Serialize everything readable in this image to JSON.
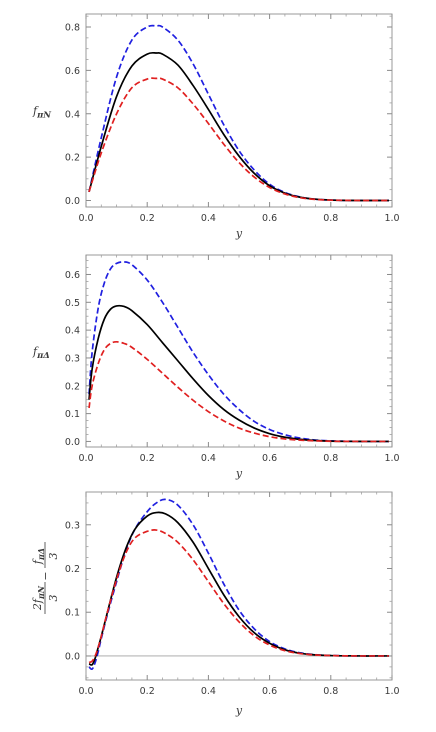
{
  "chart_data": [
    {
      "type": "line",
      "title": "",
      "xlabel": "y",
      "ylabel": "f_{πN}",
      "xlim": [
        0,
        1
      ],
      "ylim": [
        -0.03,
        0.86
      ],
      "xticks": [
        "0.0",
        "0.2",
        "0.4",
        "0.6",
        "0.8",
        "1.0"
      ],
      "yticks": [
        "0.0",
        "0.2",
        "0.4",
        "0.6",
        "0.8"
      ],
      "grid": false,
      "legend": "none",
      "x": [
        0.01,
        0.05,
        0.1,
        0.15,
        0.2,
        0.23,
        0.25,
        0.3,
        0.35,
        0.4,
        0.45,
        0.5,
        0.55,
        0.6,
        0.65,
        0.7,
        0.75,
        0.8,
        0.85,
        0.9,
        0.95,
        0.99
      ],
      "series": [
        {
          "color": "#2020e0",
          "dash": "dashed",
          "values": [
            0.04,
            0.29,
            0.57,
            0.74,
            0.8,
            0.805,
            0.8,
            0.74,
            0.63,
            0.49,
            0.35,
            0.23,
            0.14,
            0.075,
            0.037,
            0.016,
            0.006,
            0.002,
            0.0006,
            0.0001,
            0.0,
            0.0
          ]
        },
        {
          "color": "#000000",
          "dash": "solid",
          "values": [
            0.04,
            0.25,
            0.48,
            0.62,
            0.675,
            0.68,
            0.675,
            0.625,
            0.53,
            0.42,
            0.305,
            0.205,
            0.125,
            0.068,
            0.034,
            0.015,
            0.006,
            0.002,
            0.0006,
            0.0001,
            0.0,
            0.0
          ]
        },
        {
          "color": "#e02020",
          "dash": "dashed",
          "values": [
            0.04,
            0.22,
            0.4,
            0.52,
            0.56,
            0.563,
            0.56,
            0.52,
            0.445,
            0.355,
            0.26,
            0.175,
            0.108,
            0.06,
            0.03,
            0.013,
            0.005,
            0.0018,
            0.0005,
            0.0001,
            0.0,
            0.0
          ]
        }
      ]
    },
    {
      "type": "line",
      "title": "",
      "xlabel": "y",
      "ylabel": "f_{πΔ}",
      "xlim": [
        0,
        1
      ],
      "ylim": [
        -0.02,
        0.67
      ],
      "xticks": [
        "0.0",
        "0.2",
        "0.4",
        "0.6",
        "0.8",
        "1.0"
      ],
      "yticks": [
        "0.0",
        "0.1",
        "0.2",
        "0.3",
        "0.4",
        "0.5",
        "0.6"
      ],
      "grid": false,
      "legend": "none",
      "x": [
        0.01,
        0.02,
        0.04,
        0.06,
        0.08,
        0.1,
        0.125,
        0.15,
        0.2,
        0.25,
        0.3,
        0.35,
        0.4,
        0.45,
        0.5,
        0.55,
        0.6,
        0.65,
        0.7,
        0.75,
        0.8,
        0.85,
        0.9,
        0.95,
        0.99
      ],
      "series": [
        {
          "color": "#2020e0",
          "dash": "dashed",
          "values": [
            0.17,
            0.32,
            0.48,
            0.57,
            0.62,
            0.64,
            0.645,
            0.635,
            0.58,
            0.5,
            0.41,
            0.32,
            0.24,
            0.17,
            0.115,
            0.072,
            0.043,
            0.024,
            0.012,
            0.005,
            0.002,
            0.0007,
            0.0002,
            0.0,
            0.0
          ]
        },
        {
          "color": "#000000",
          "dash": "solid",
          "values": [
            0.15,
            0.26,
            0.37,
            0.44,
            0.475,
            0.487,
            0.485,
            0.47,
            0.42,
            0.355,
            0.29,
            0.225,
            0.165,
            0.115,
            0.077,
            0.048,
            0.028,
            0.015,
            0.0075,
            0.0033,
            0.0012,
            0.0004,
            0.0001,
            0.0,
            0.0
          ]
        },
        {
          "color": "#e02020",
          "dash": "dashed",
          "values": [
            0.12,
            0.2,
            0.28,
            0.33,
            0.352,
            0.358,
            0.352,
            0.338,
            0.295,
            0.245,
            0.195,
            0.148,
            0.107,
            0.074,
            0.048,
            0.03,
            0.017,
            0.009,
            0.0045,
            0.002,
            0.0007,
            0.0002,
            0.0,
            0.0,
            0.0
          ]
        }
      ]
    },
    {
      "type": "line",
      "title": "",
      "xlabel": "y",
      "ylabel": "2f_{πN}/3 − f_{πΔ}/3",
      "ylabel_parts": {
        "n1": "2f",
        "n1_sub": "πN",
        "d1": "3",
        "minus": "−",
        "n2": "f",
        "n2_sub": "πΔ",
        "d2": "3"
      },
      "xlim": [
        0,
        1
      ],
      "ylim": [
        -0.055,
        0.375
      ],
      "xticks": [
        "0.0",
        "0.2",
        "0.4",
        "0.6",
        "0.8",
        "1.0"
      ],
      "yticks": [
        "0.0",
        "0.1",
        "0.2",
        "0.3"
      ],
      "zero_line": true,
      "grid": false,
      "legend": "none",
      "x": [
        0.01,
        0.02,
        0.03,
        0.04,
        0.05,
        0.07,
        0.1,
        0.13,
        0.16,
        0.2,
        0.23,
        0.26,
        0.3,
        0.35,
        0.4,
        0.45,
        0.5,
        0.55,
        0.6,
        0.65,
        0.7,
        0.75,
        0.8,
        0.85,
        0.9,
        0.95,
        0.99
      ],
      "series": [
        {
          "color": "#2020e0",
          "dash": "dashed",
          "values": [
            -0.025,
            -0.03,
            -0.015,
            0.01,
            0.04,
            0.095,
            0.17,
            0.24,
            0.29,
            0.33,
            0.35,
            0.358,
            0.345,
            0.3,
            0.235,
            0.165,
            0.105,
            0.062,
            0.033,
            0.016,
            0.007,
            0.0028,
            0.001,
            0.0003,
            0.0,
            0.0,
            0.0
          ]
        },
        {
          "color": "#000000",
          "dash": "solid",
          "values": [
            -0.018,
            -0.02,
            -0.005,
            0.02,
            0.045,
            0.1,
            0.18,
            0.245,
            0.29,
            0.32,
            0.328,
            0.325,
            0.305,
            0.26,
            0.2,
            0.14,
            0.09,
            0.053,
            0.029,
            0.014,
            0.006,
            0.0024,
            0.0009,
            0.0003,
            0.0,
            0.0,
            0.0
          ]
        },
        {
          "color": "#e02020",
          "dash": "dashed",
          "values": [
            -0.015,
            -0.012,
            0.0,
            0.02,
            0.045,
            0.1,
            0.175,
            0.235,
            0.27,
            0.285,
            0.288,
            0.28,
            0.26,
            0.22,
            0.17,
            0.12,
            0.078,
            0.046,
            0.025,
            0.012,
            0.0055,
            0.0022,
            0.0008,
            0.0002,
            0.0,
            0.0,
            0.0
          ]
        }
      ]
    }
  ]
}
